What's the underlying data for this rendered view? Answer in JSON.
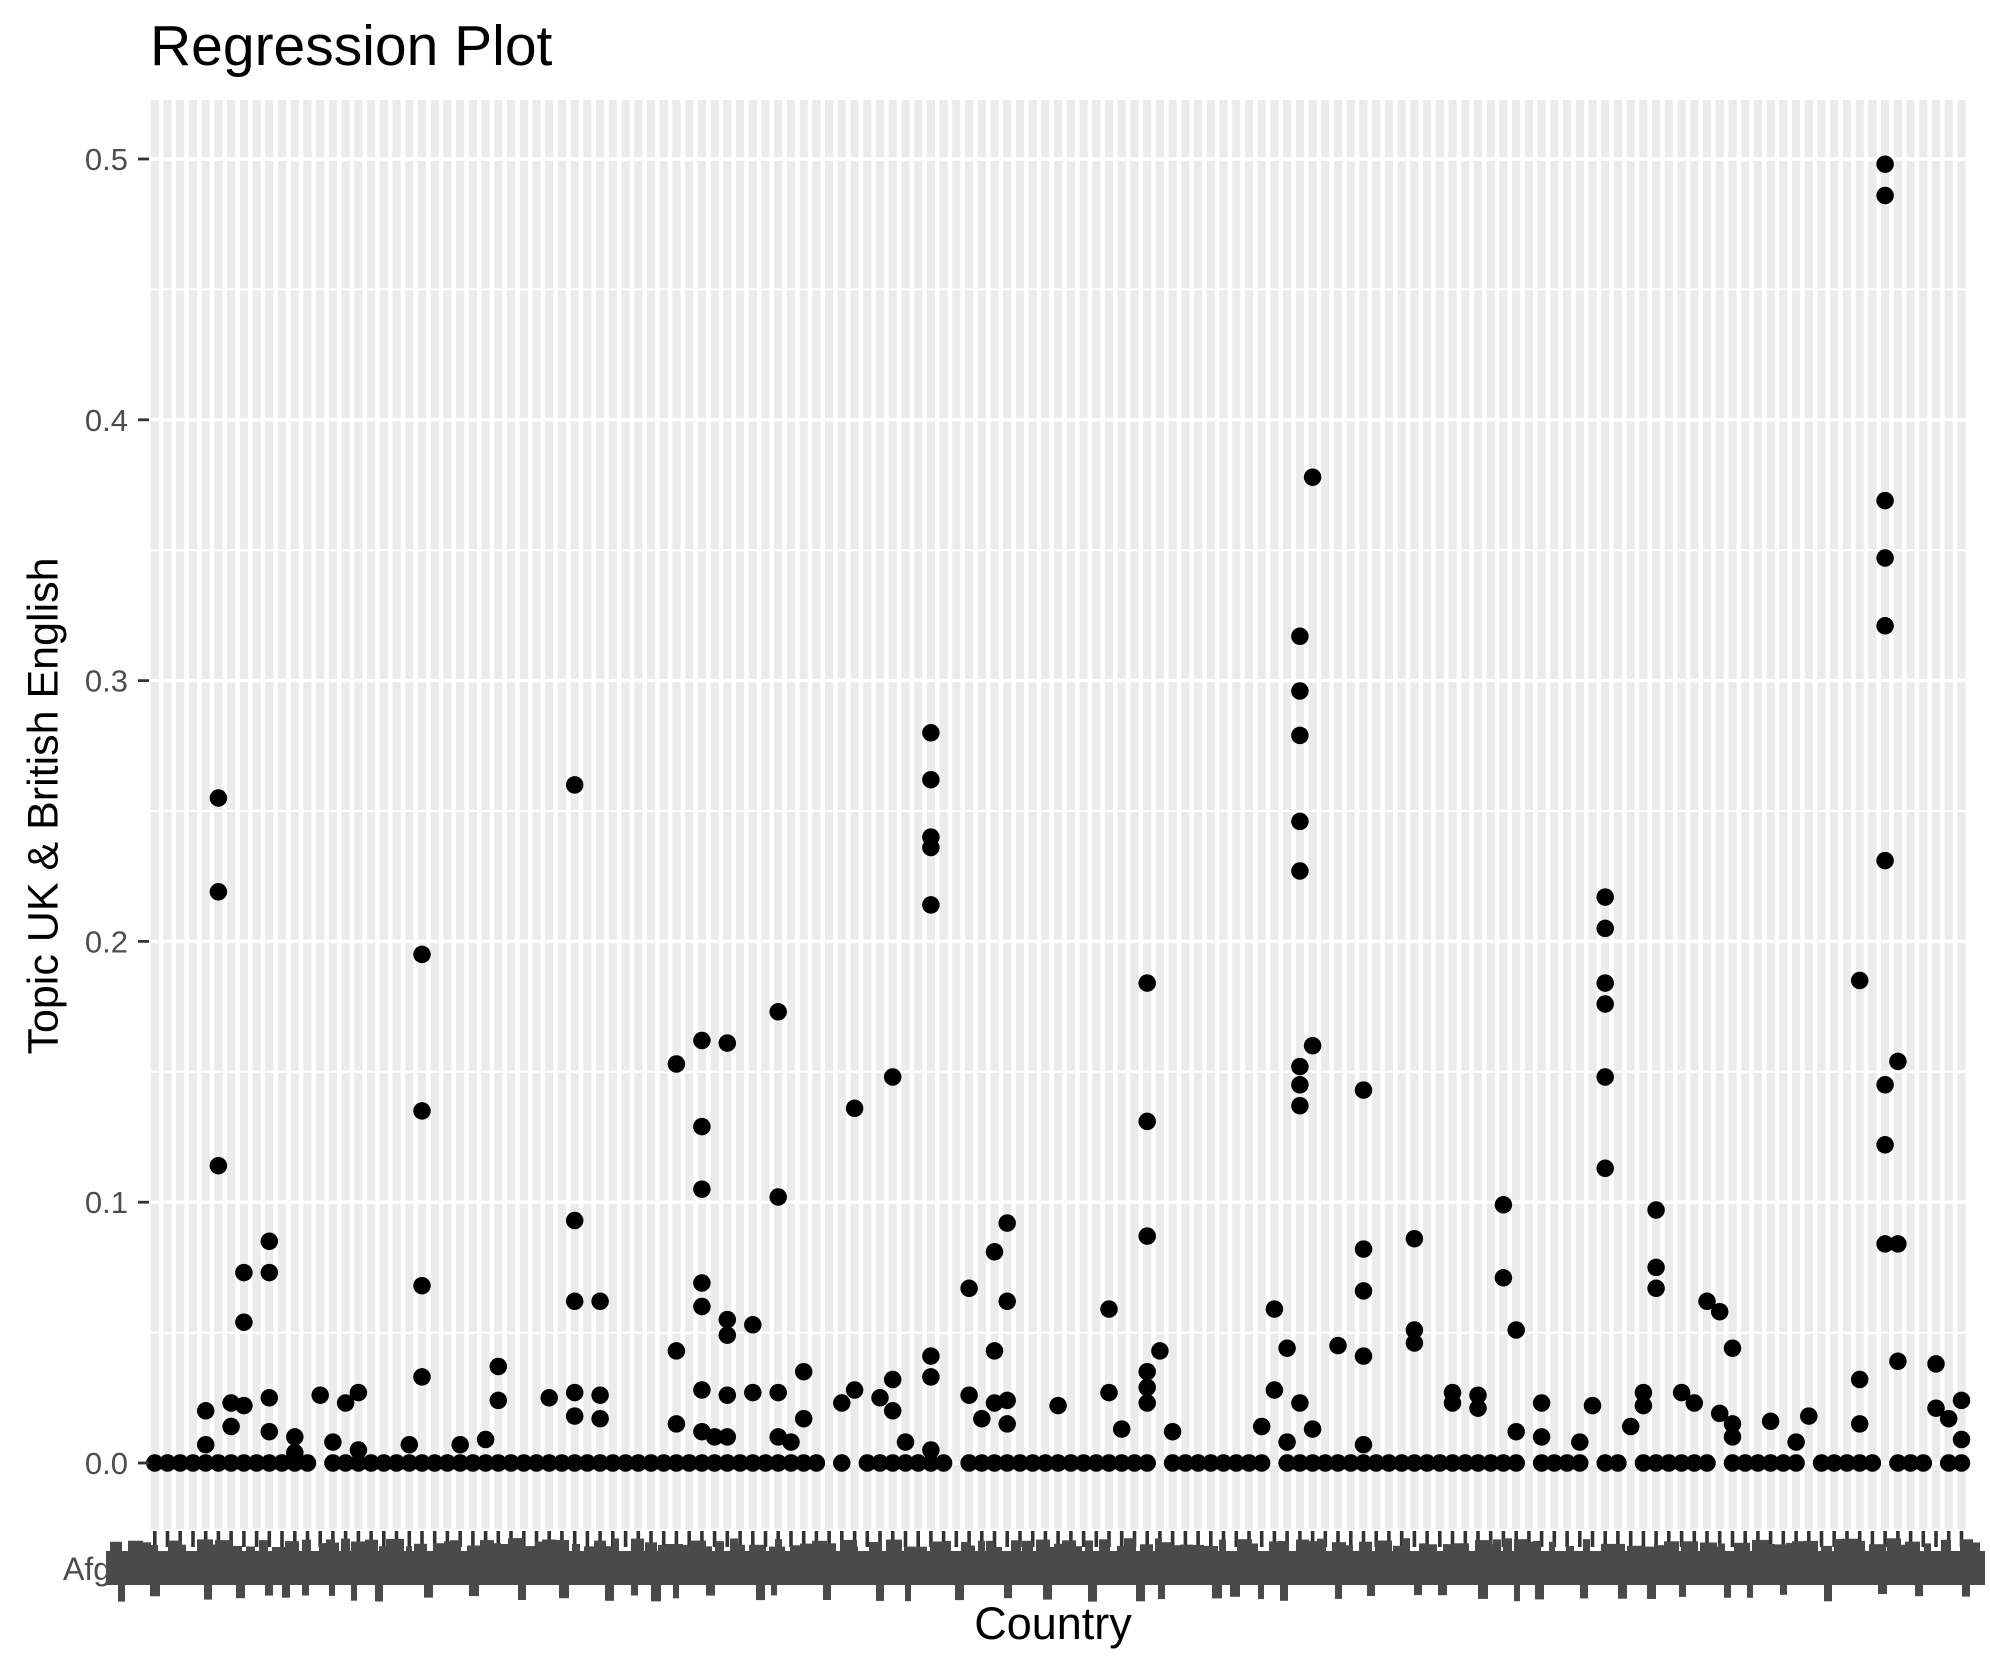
{
  "title": "Regression Plot",
  "colors": {
    "background": "#FFFFFF",
    "panel_stripe": "#EBEBEB",
    "gridline": "#FFFFFF",
    "point": "#000000",
    "tick_mark": "#333333",
    "tick_label": "#4D4D4D",
    "axis_title": "#000000",
    "title": "#000000",
    "x_label_smear": "#4A4A4A"
  },
  "chart_data": {
    "type": "scatter",
    "title": "Regression Plot",
    "xlabel": "Country",
    "ylabel": "Topic UK & British English",
    "ylim": [
      0,
      0.5
    ],
    "yticks": [
      0.0,
      0.1,
      0.2,
      0.3,
      0.4,
      0.5
    ],
    "y_tick_labels": [
      "0.0",
      "0.1",
      "0.2",
      "0.3",
      "0.4",
      "0.5"
    ],
    "legend": "none",
    "grid": {
      "vertical_stripe_per_category": true,
      "horizontal_major_step": 0.1,
      "horizontal_minor_step": 0.05
    },
    "x_axis": {
      "type": "categorical",
      "category_count": 143,
      "first_visible_label": "Afg",
      "labels_overlapping_illegible": true,
      "tick_per_category": true
    },
    "zero_row": {
      "description": "one point at y=0 for nearly every category column",
      "skip_columns": [
        13,
        53,
        55,
        63,
        79,
        88,
        108,
        113,
        116,
        123,
        130,
        136,
        140
      ]
    },
    "points": [
      [
        4,
        0.02
      ],
      [
        4,
        0.007
      ],
      [
        5,
        0.255
      ],
      [
        5,
        0.219
      ],
      [
        5,
        0.114
      ],
      [
        6,
        0.023
      ],
      [
        6,
        0.014
      ],
      [
        7,
        0.073
      ],
      [
        7,
        0.054
      ],
      [
        7,
        0.022
      ],
      [
        9,
        0.085
      ],
      [
        9,
        0.073
      ],
      [
        9,
        0.025
      ],
      [
        9,
        0.012
      ],
      [
        11,
        0.01
      ],
      [
        11,
        0.004
      ],
      [
        13,
        0.026
      ],
      [
        14,
        0.008
      ],
      [
        15,
        0.023
      ],
      [
        16,
        0.027
      ],
      [
        16,
        0.005
      ],
      [
        20,
        0.007
      ],
      [
        21,
        0.195
      ],
      [
        21,
        0.135
      ],
      [
        21,
        0.068
      ],
      [
        21,
        0.033
      ],
      [
        24,
        0.007
      ],
      [
        26,
        0.009
      ],
      [
        27,
        0.037
      ],
      [
        27,
        0.024
      ],
      [
        31,
        0.025
      ],
      [
        33,
        0.26
      ],
      [
        33,
        0.093
      ],
      [
        33,
        0.062
      ],
      [
        33,
        0.027
      ],
      [
        33,
        0.018
      ],
      [
        35,
        0.062
      ],
      [
        35,
        0.026
      ],
      [
        35,
        0.017
      ],
      [
        41,
        0.153
      ],
      [
        41,
        0.043
      ],
      [
        41,
        0.015
      ],
      [
        43,
        0.162
      ],
      [
        43,
        0.129
      ],
      [
        43,
        0.105
      ],
      [
        43,
        0.069
      ],
      [
        43,
        0.06
      ],
      [
        43,
        0.028
      ],
      [
        43,
        0.012
      ],
      [
        44,
        0.01
      ],
      [
        45,
        0.161
      ],
      [
        45,
        0.055
      ],
      [
        45,
        0.049
      ],
      [
        45,
        0.026
      ],
      [
        45,
        0.01
      ],
      [
        47,
        0.053
      ],
      [
        47,
        0.027
      ],
      [
        49,
        0.173
      ],
      [
        49,
        0.102
      ],
      [
        49,
        0.027
      ],
      [
        49,
        0.01
      ],
      [
        50,
        0.008
      ],
      [
        51,
        0.035
      ],
      [
        51,
        0.017
      ],
      [
        54,
        0.023
      ],
      [
        55,
        0.136
      ],
      [
        55,
        0.028
      ],
      [
        57,
        0.025
      ],
      [
        58,
        0.148
      ],
      [
        58,
        0.032
      ],
      [
        58,
        0.02
      ],
      [
        59,
        0.008
      ],
      [
        61,
        0.28
      ],
      [
        61,
        0.262
      ],
      [
        61,
        0.24
      ],
      [
        61,
        0.236
      ],
      [
        61,
        0.214
      ],
      [
        61,
        0.041
      ],
      [
        61,
        0.033
      ],
      [
        61,
        0.005
      ],
      [
        64,
        0.067
      ],
      [
        64,
        0.026
      ],
      [
        65,
        0.017
      ],
      [
        66,
        0.081
      ],
      [
        66,
        0.043
      ],
      [
        66,
        0.023
      ],
      [
        67,
        0.092
      ],
      [
        67,
        0.062
      ],
      [
        67,
        0.024
      ],
      [
        67,
        0.015
      ],
      [
        71,
        0.022
      ],
      [
        75,
        0.059
      ],
      [
        75,
        0.027
      ],
      [
        76,
        0.013
      ],
      [
        78,
        0.184
      ],
      [
        78,
        0.131
      ],
      [
        78,
        0.087
      ],
      [
        78,
        0.035
      ],
      [
        78,
        0.029
      ],
      [
        78,
        0.023
      ],
      [
        79,
        0.043
      ],
      [
        80,
        0.012
      ],
      [
        87,
        0.014
      ],
      [
        88,
        0.059
      ],
      [
        88,
        0.028
      ],
      [
        89,
        0.044
      ],
      [
        89,
        0.008
      ],
      [
        90,
        0.317
      ],
      [
        90,
        0.296
      ],
      [
        90,
        0.279
      ],
      [
        90,
        0.246
      ],
      [
        90,
        0.227
      ],
      [
        90,
        0.152
      ],
      [
        90,
        0.145
      ],
      [
        90,
        0.137
      ],
      [
        90,
        0.023
      ],
      [
        91,
        0.378
      ],
      [
        91,
        0.16
      ],
      [
        91,
        0.013
      ],
      [
        93,
        0.045
      ],
      [
        95,
        0.143
      ],
      [
        95,
        0.082
      ],
      [
        95,
        0.066
      ],
      [
        95,
        0.041
      ],
      [
        95,
        0.007
      ],
      [
        99,
        0.086
      ],
      [
        99,
        0.051
      ],
      [
        99,
        0.046
      ],
      [
        102,
        0.027
      ],
      [
        102,
        0.023
      ],
      [
        104,
        0.026
      ],
      [
        104,
        0.021
      ],
      [
        106,
        0.099
      ],
      [
        106,
        0.071
      ],
      [
        107,
        0.051
      ],
      [
        107,
        0.012
      ],
      [
        109,
        0.023
      ],
      [
        109,
        0.01
      ],
      [
        112,
        0.008
      ],
      [
        113,
        0.022
      ],
      [
        114,
        0.217
      ],
      [
        114,
        0.205
      ],
      [
        114,
        0.184
      ],
      [
        114,
        0.176
      ],
      [
        114,
        0.148
      ],
      [
        114,
        0.113
      ],
      [
        116,
        0.014
      ],
      [
        117,
        0.027
      ],
      [
        117,
        0.022
      ],
      [
        118,
        0.097
      ],
      [
        118,
        0.075
      ],
      [
        118,
        0.067
      ],
      [
        120,
        0.027
      ],
      [
        121,
        0.023
      ],
      [
        122,
        0.062
      ],
      [
        123,
        0.058
      ],
      [
        123,
        0.019
      ],
      [
        124,
        0.044
      ],
      [
        124,
        0.015
      ],
      [
        124,
        0.01
      ],
      [
        127,
        0.016
      ],
      [
        129,
        0.008
      ],
      [
        130,
        0.018
      ],
      [
        134,
        0.185
      ],
      [
        134,
        0.032
      ],
      [
        134,
        0.015
      ],
      [
        136,
        0.498
      ],
      [
        136,
        0.486
      ],
      [
        136,
        0.369
      ],
      [
        136,
        0.347
      ],
      [
        136,
        0.321
      ],
      [
        136,
        0.231
      ],
      [
        136,
        0.145
      ],
      [
        136,
        0.122
      ],
      [
        136,
        0.084
      ],
      [
        137,
        0.154
      ],
      [
        137,
        0.084
      ],
      [
        137,
        0.039
      ],
      [
        140,
        0.038
      ],
      [
        140,
        0.021
      ],
      [
        141,
        0.017
      ],
      [
        142,
        0.024
      ],
      [
        142,
        0.009
      ]
    ]
  }
}
